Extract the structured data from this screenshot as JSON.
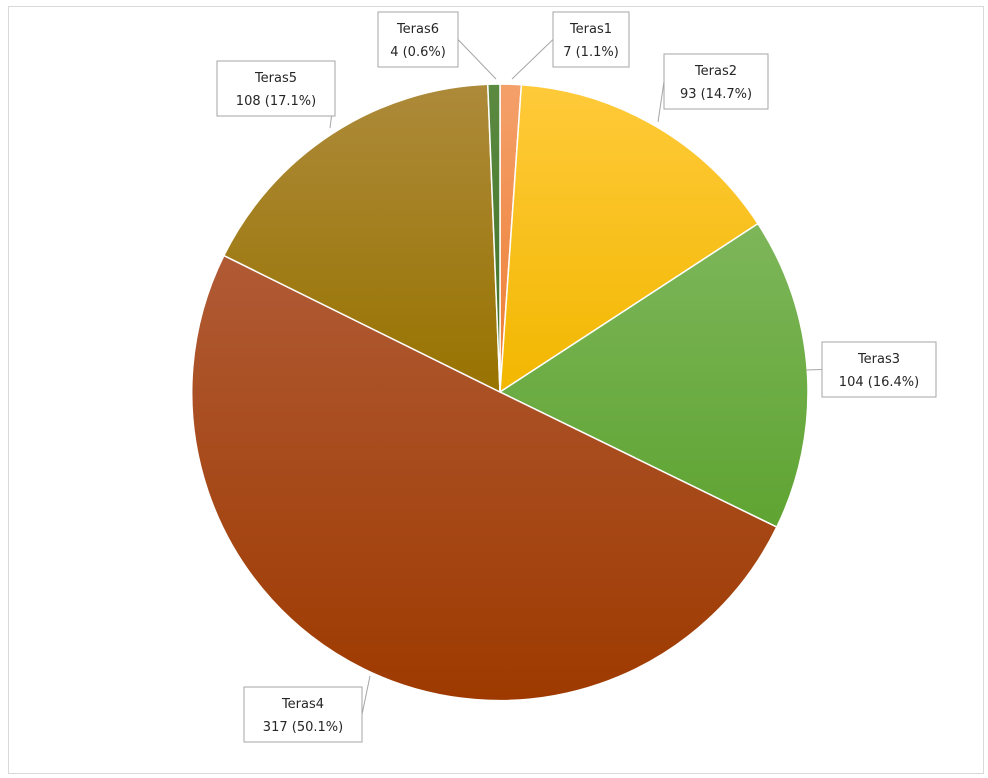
{
  "chart_data": {
    "type": "pie",
    "title": "",
    "legend": "none",
    "slices": [
      {
        "name": "Teras1",
        "value": 7,
        "percent": "1.1%",
        "color": "#ed7d31",
        "color_light": "#f4a06a"
      },
      {
        "name": "Teras2",
        "value": 93,
        "percent": "14.7%",
        "color": "#f2b700",
        "color_light": "#ffca3a"
      },
      {
        "name": "Teras3",
        "value": 104,
        "percent": "16.4%",
        "color": "#5fa432",
        "color_light": "#7db65a"
      },
      {
        "name": "Teras4",
        "value": 317,
        "percent": "50.1%",
        "color": "#9e3a00",
        "color_light": "#b05a35"
      },
      {
        "name": "Teras5",
        "value": 108,
        "percent": "17.1%",
        "color": "#987300",
        "color_light": "#ad8a3a"
      },
      {
        "name": "Teras6",
        "value": 4,
        "percent": "0.6%",
        "color": "#3f6f27",
        "color_light": "#5b8a40"
      }
    ]
  }
}
